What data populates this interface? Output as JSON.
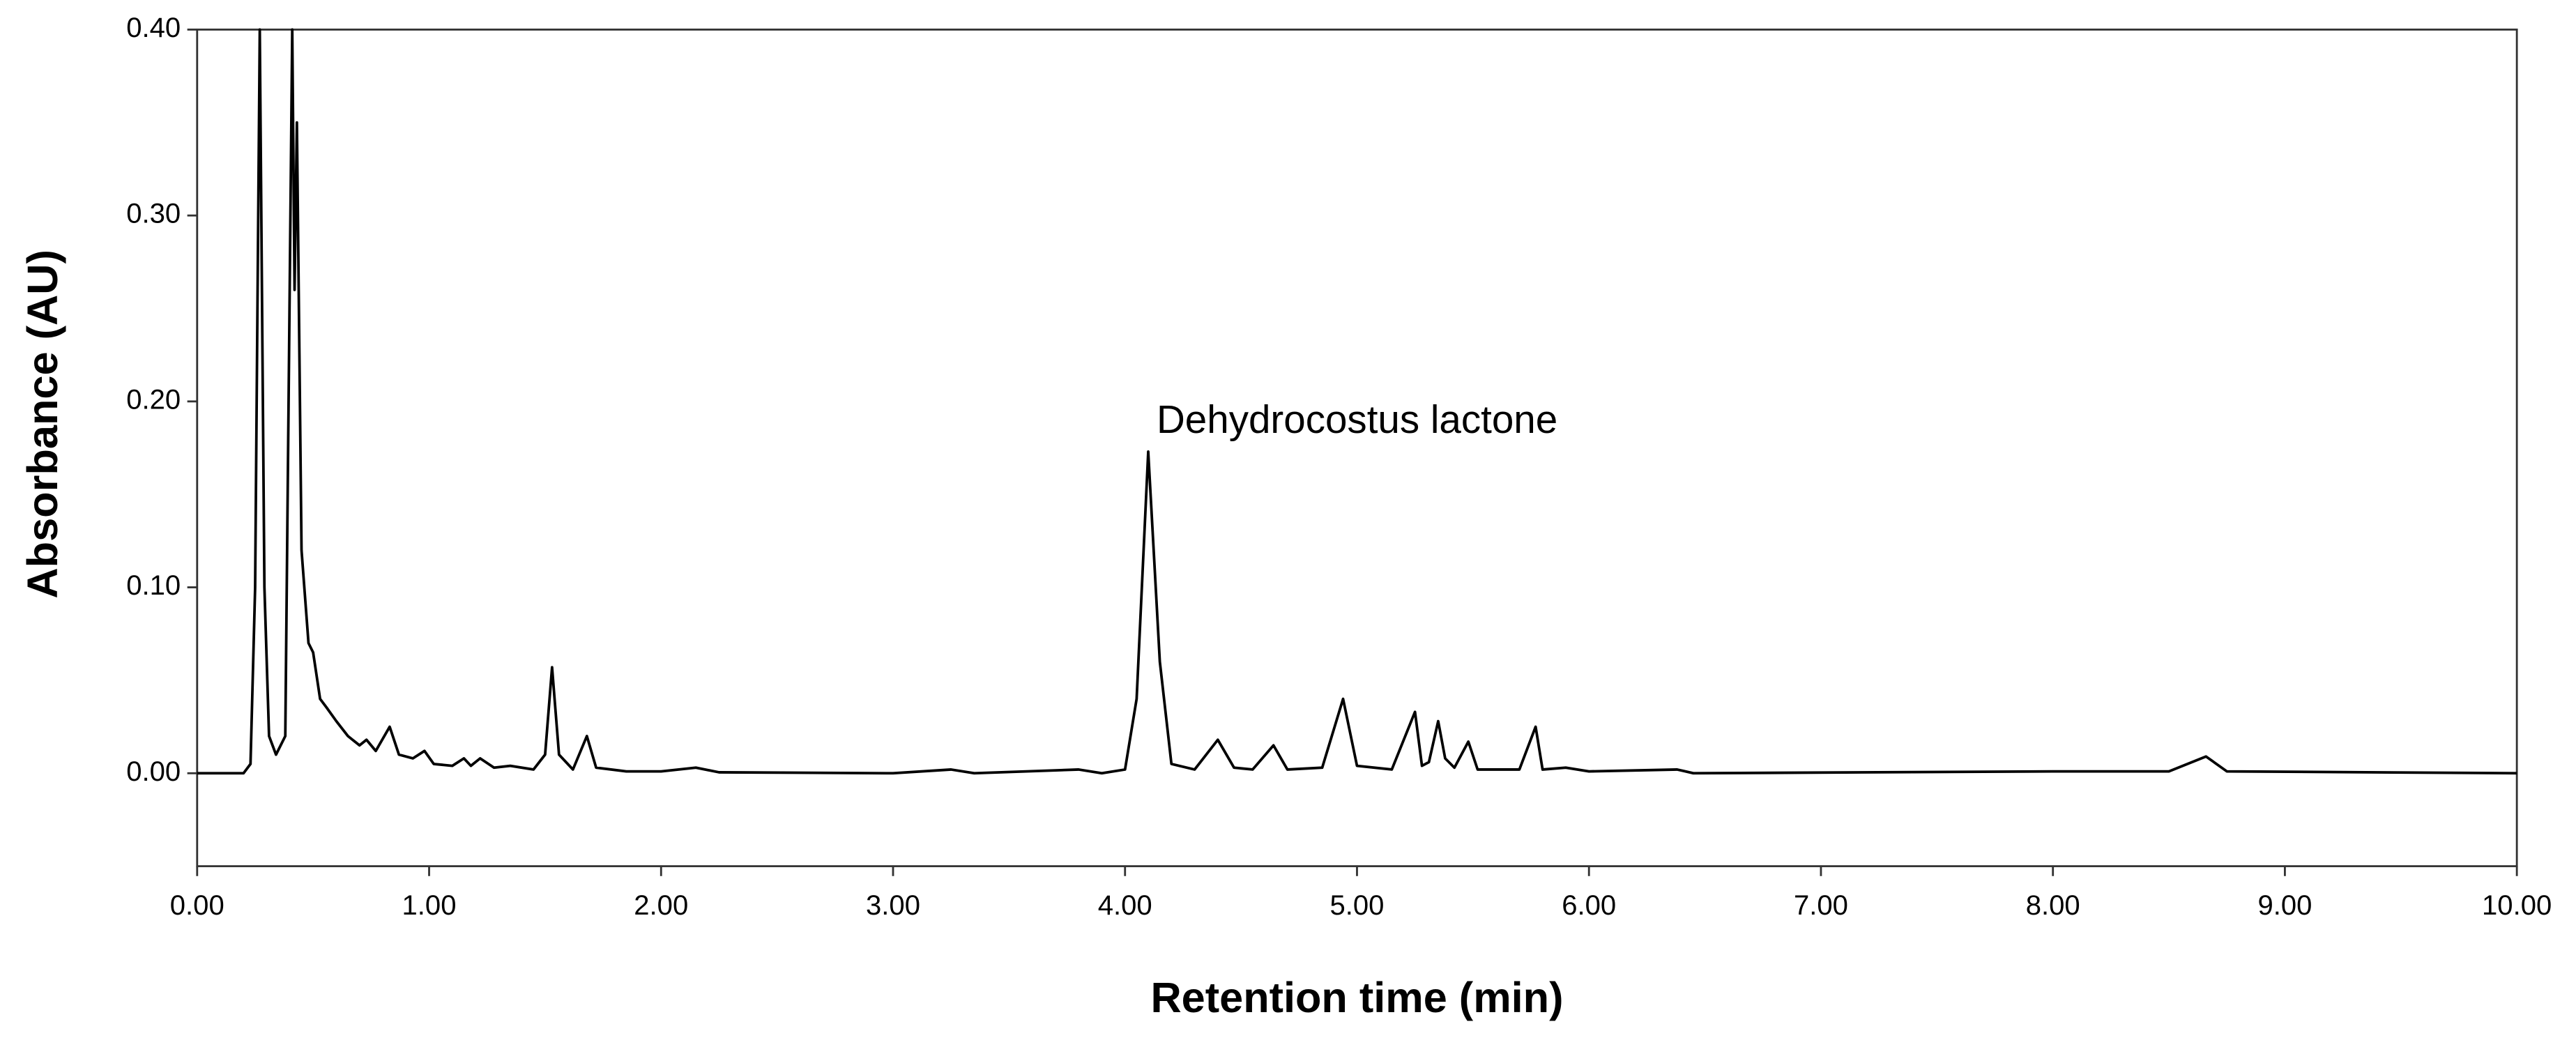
{
  "chart_data": {
    "type": "line",
    "xlabel": "Retention time (min)",
    "ylabel": "Absorbance (AU)",
    "annotation": "Dehydrocostus lactone",
    "color": "#000000",
    "xlim": [
      0,
      10
    ],
    "ylim": [
      -0.05,
      0.4
    ],
    "xticks": [
      {
        "value": 0,
        "label": "0.00"
      },
      {
        "value": 1,
        "label": "1.00"
      },
      {
        "value": 2,
        "label": "2.00"
      },
      {
        "value": 3,
        "label": "3.00"
      },
      {
        "value": 4,
        "label": "4.00"
      },
      {
        "value": 5,
        "label": "5.00"
      },
      {
        "value": 6,
        "label": "6.00"
      },
      {
        "value": 7,
        "label": "7.00"
      },
      {
        "value": 8,
        "label": "8.00"
      },
      {
        "value": 9,
        "label": "9.00"
      },
      {
        "value": 10,
        "label": "10.00"
      }
    ],
    "yticks": [
      {
        "value": 0,
        "label": "0.00"
      },
      {
        "value": 0.1,
        "label": "0.10"
      },
      {
        "value": 0.2,
        "label": "0.20"
      },
      {
        "value": 0.3,
        "label": "0.30"
      },
      {
        "value": 0.4,
        "label": "0.40"
      }
    ],
    "x": [
      0,
      0.2,
      0.23,
      0.25,
      0.27,
      0.29,
      0.31,
      0.34,
      0.38,
      0.41,
      0.42,
      0.43,
      0.45,
      0.48,
      0.5,
      0.53,
      0.56,
      0.6,
      0.65,
      0.7,
      0.73,
      0.77,
      0.83,
      0.87,
      0.93,
      0.98,
      1.02,
      1.1,
      1.15,
      1.18,
      1.22,
      1.28,
      1.35,
      1.45,
      1.5,
      1.53,
      1.56,
      1.62,
      1.68,
      1.72,
      1.85,
      2.0,
      2.15,
      2.25,
      3.0,
      3.25,
      3.35,
      3.8,
      3.9,
      4.0,
      4.05,
      4.1,
      4.15,
      4.2,
      4.3,
      4.4,
      4.47,
      4.55,
      4.64,
      4.7,
      4.85,
      4.94,
      5.0,
      5.15,
      5.25,
      5.28,
      5.31,
      5.35,
      5.38,
      5.42,
      5.48,
      5.52,
      5.7,
      5.77,
      5.8,
      5.9,
      6.0,
      6.38,
      6.45,
      8.0,
      8.5,
      8.66,
      8.75,
      10
    ],
    "values": [
      0,
      0,
      0.005,
      0.1,
      0.4,
      0.1,
      0.02,
      0.01,
      0.02,
      0.4,
      0.26,
      0.35,
      0.12,
      0.07,
      0.065,
      0.04,
      0.035,
      0.028,
      0.02,
      0.015,
      0.018,
      0.012,
      0.025,
      0.01,
      0.008,
      0.012,
      0.005,
      0.004,
      0.008,
      0.004,
      0.008,
      0.003,
      0.004,
      0.002,
      0.01,
      0.057,
      0.01,
      0.002,
      0.02,
      0.003,
      0.001,
      0.001,
      0.003,
      0.0005,
      0,
      0.002,
      0,
      0.002,
      0,
      0.002,
      0.04,
      0.173,
      0.06,
      0.005,
      0.002,
      0.018,
      0.003,
      0.002,
      0.015,
      0.002,
      0.003,
      0.04,
      0.004,
      0.002,
      0.033,
      0.004,
      0.006,
      0.028,
      0.008,
      0.003,
      0.017,
      0.002,
      0.002,
      0.025,
      0.002,
      0.003,
      0.001,
      0.002,
      0,
      0.001,
      0.001,
      0.009,
      0.001,
      0
    ]
  }
}
